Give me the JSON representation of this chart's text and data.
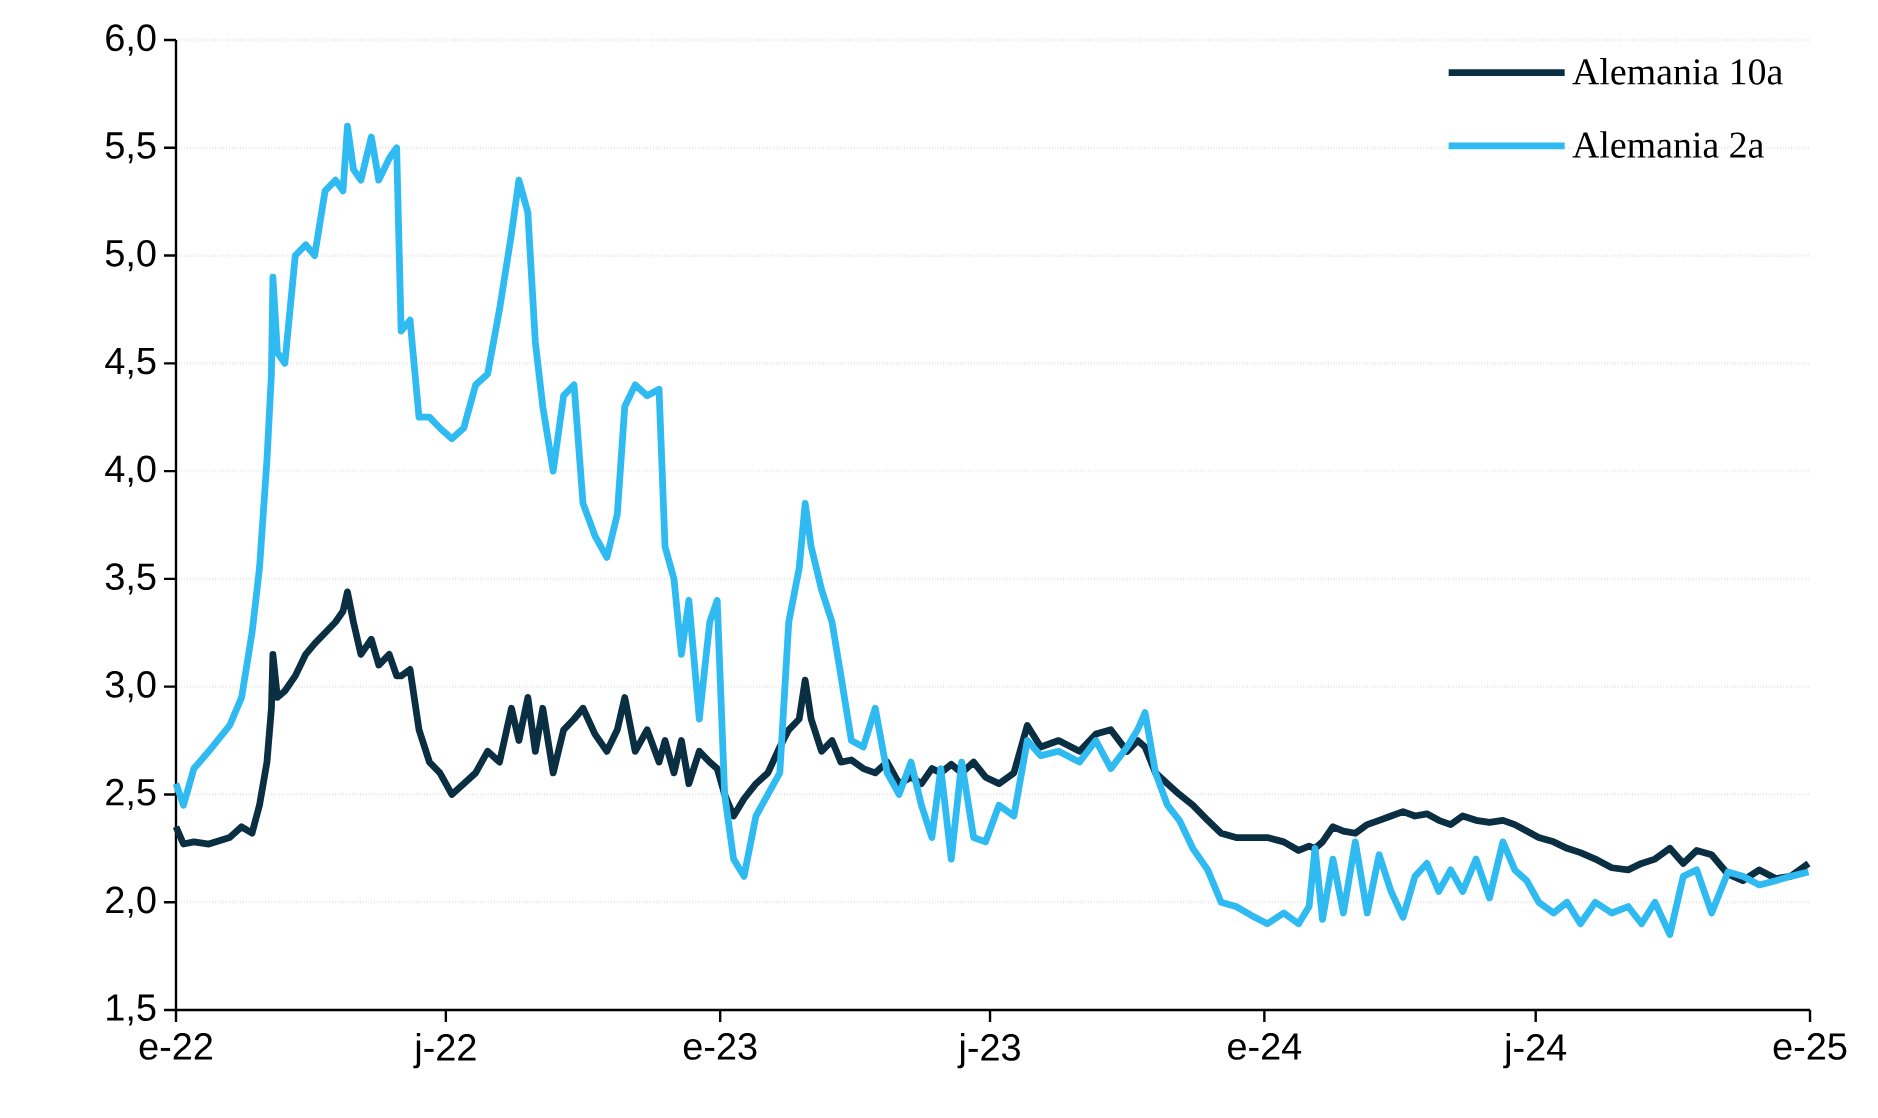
{
  "chart_data": {
    "type": "line",
    "x": [
      "2022-01-01",
      "2022-01-06",
      "2022-01-13",
      "2022-01-23",
      "2022-02-06",
      "2022-02-14",
      "2022-02-21",
      "2022-02-26",
      "2022-03-03",
      "2022-03-06",
      "2022-03-07",
      "2022-03-10",
      "2022-03-15",
      "2022-03-22",
      "2022-03-29",
      "2022-04-04",
      "2022-04-11",
      "2022-04-18",
      "2022-04-23",
      "2022-04-26",
      "2022-04-30",
      "2022-05-05",
      "2022-05-12",
      "2022-05-17",
      "2022-05-24",
      "2022-05-29",
      "2022-06-01",
      "2022-06-07",
      "2022-06-13",
      "2022-06-20",
      "2022-06-27",
      "2022-07-05",
      "2022-07-13",
      "2022-07-21",
      "2022-07-29",
      "2022-08-06",
      "2022-08-14",
      "2022-08-19",
      "2022-08-25",
      "2022-08-30",
      "2022-09-04",
      "2022-09-11",
      "2022-09-18",
      "2022-09-25",
      "2022-10-01",
      "2022-10-09",
      "2022-10-17",
      "2022-10-24",
      "2022-10-29",
      "2022-11-05",
      "2022-11-13",
      "2022-11-21",
      "2022-11-25",
      "2022-12-01",
      "2022-12-06",
      "2022-12-11",
      "2022-12-18",
      "2022-12-25",
      "2022-12-30",
      "2023-01-04",
      "2023-01-10",
      "2023-01-17",
      "2023-01-25",
      "2023-02-02",
      "2023-02-10",
      "2023-02-16",
      "2023-02-23",
      "2023-02-27",
      "2023-03-03",
      "2023-03-10",
      "2023-03-17",
      "2023-03-23",
      "2023-03-30",
      "2023-04-07",
      "2023-04-15",
      "2023-04-23",
      "2023-05-01",
      "2023-05-09",
      "2023-05-16",
      "2023-05-23",
      "2023-05-29",
      "2023-06-05",
      "2023-06-12",
      "2023-06-20",
      "2023-06-28",
      "2023-07-07",
      "2023-07-17",
      "2023-07-26",
      "2023-08-04",
      "2023-08-16",
      "2023-08-30",
      "2023-09-10",
      "2023-09-20",
      "2023-10-01",
      "2023-10-08",
      "2023-10-13",
      "2023-10-20",
      "2023-10-28",
      "2023-11-05",
      "2023-11-14",
      "2023-11-24",
      "2023-12-03",
      "2023-12-13",
      "2023-12-23",
      "2024-01-03",
      "2024-01-14",
      "2024-01-24",
      "2024-01-31",
      "2024-02-04",
      "2024-02-09",
      "2024-02-16",
      "2024-02-23",
      "2024-03-02",
      "2024-03-10",
      "2024-03-18",
      "2024-03-26",
      "2024-04-03",
      "2024-04-11",
      "2024-04-19",
      "2024-04-27",
      "2024-05-05",
      "2024-05-13",
      "2024-05-22",
      "2024-05-31",
      "2024-06-09",
      "2024-06-17",
      "2024-06-25",
      "2024-07-03",
      "2024-07-13",
      "2024-07-22",
      "2024-07-31",
      "2024-08-10",
      "2024-08-21",
      "2024-09-01",
      "2024-09-10",
      "2024-09-19",
      "2024-09-29",
      "2024-10-08",
      "2024-10-17",
      "2024-10-27",
      "2024-11-07",
      "2024-11-17",
      "2024-11-28",
      "2024-12-09",
      "2024-12-19",
      "2024-12-31"
    ],
    "series": [
      {
        "name": "Alemania 10a",
        "color": "#0a2e42",
        "values": [
          2.35,
          2.27,
          2.28,
          2.27,
          2.3,
          2.35,
          2.32,
          2.45,
          2.65,
          2.9,
          3.15,
          2.95,
          2.98,
          3.05,
          3.15,
          3.2,
          3.25,
          3.3,
          3.35,
          3.44,
          3.3,
          3.15,
          3.22,
          3.1,
          3.15,
          3.05,
          3.05,
          3.08,
          2.8,
          2.65,
          2.6,
          2.5,
          2.55,
          2.6,
          2.7,
          2.65,
          2.9,
          2.75,
          2.95,
          2.7,
          2.9,
          2.6,
          2.8,
          2.85,
          2.9,
          2.78,
          2.7,
          2.8,
          2.95,
          2.7,
          2.8,
          2.65,
          2.75,
          2.6,
          2.75,
          2.55,
          2.7,
          2.65,
          2.62,
          2.5,
          2.4,
          2.48,
          2.55,
          2.6,
          2.72,
          2.8,
          2.85,
          3.03,
          2.85,
          2.7,
          2.75,
          2.65,
          2.66,
          2.62,
          2.6,
          2.65,
          2.55,
          2.58,
          2.55,
          2.62,
          2.6,
          2.64,
          2.6,
          2.65,
          2.58,
          2.55,
          2.6,
          2.82,
          2.72,
          2.75,
          2.7,
          2.78,
          2.8,
          2.7,
          2.75,
          2.72,
          2.6,
          2.55,
          2.5,
          2.45,
          2.38,
          2.32,
          2.3,
          2.3,
          2.3,
          2.28,
          2.24,
          2.26,
          2.25,
          2.28,
          2.35,
          2.33,
          2.32,
          2.36,
          2.38,
          2.4,
          2.42,
          2.4,
          2.41,
          2.38,
          2.36,
          2.4,
          2.38,
          2.37,
          2.38,
          2.36,
          2.33,
          2.3,
          2.28,
          2.25,
          2.23,
          2.2,
          2.16,
          2.15,
          2.18,
          2.2,
          2.25,
          2.18,
          2.24,
          2.22,
          2.13,
          2.1,
          2.15,
          2.11,
          2.12,
          2.18
        ]
      },
      {
        "name": "Alemania 2a",
        "color": "#2fbbf2",
        "values": [
          2.55,
          2.45,
          2.62,
          2.7,
          2.82,
          2.95,
          3.25,
          3.55,
          4.05,
          4.45,
          4.9,
          4.55,
          4.5,
          5.0,
          5.05,
          5.0,
          5.3,
          5.35,
          5.3,
          5.6,
          5.4,
          5.35,
          5.55,
          5.35,
          5.45,
          5.5,
          4.65,
          4.7,
          4.25,
          4.25,
          4.2,
          4.15,
          4.2,
          4.4,
          4.45,
          4.75,
          5.1,
          5.35,
          5.2,
          4.6,
          4.3,
          4.0,
          4.35,
          4.4,
          3.85,
          3.7,
          3.6,
          3.8,
          4.3,
          4.4,
          4.35,
          4.38,
          3.65,
          3.5,
          3.15,
          3.4,
          2.85,
          3.3,
          3.4,
          2.5,
          2.2,
          2.12,
          2.4,
          2.5,
          2.6,
          3.3,
          3.55,
          3.85,
          3.65,
          3.45,
          3.3,
          3.05,
          2.75,
          2.72,
          2.9,
          2.6,
          2.5,
          2.65,
          2.45,
          2.3,
          2.62,
          2.2,
          2.65,
          2.3,
          2.28,
          2.45,
          2.4,
          2.75,
          2.68,
          2.7,
          2.65,
          2.75,
          2.62,
          2.72,
          2.8,
          2.88,
          2.6,
          2.45,
          2.38,
          2.25,
          2.15,
          2.0,
          1.98,
          1.94,
          1.9,
          1.95,
          1.9,
          1.98,
          2.25,
          1.92,
          2.2,
          1.95,
          2.28,
          1.95,
          2.22,
          2.05,
          1.93,
          2.12,
          2.18,
          2.05,
          2.15,
          2.05,
          2.2,
          2.02,
          2.28,
          2.15,
          2.1,
          2.0,
          1.95,
          2.0,
          1.9,
          2.0,
          1.95,
          1.98,
          1.9,
          2.0,
          1.85,
          2.12,
          2.15,
          1.95,
          2.14,
          2.12,
          2.08,
          2.1,
          2.12,
          2.14
        ]
      }
    ],
    "xlim": [
      "2022-01-01",
      "2025-01-01"
    ],
    "xticks": [
      {
        "value": "2022-01-01",
        "label": "e-22"
      },
      {
        "value": "2022-07-01",
        "label": "j-22"
      },
      {
        "value": "2023-01-01",
        "label": "e-23"
      },
      {
        "value": "2023-07-01",
        "label": "j-23"
      },
      {
        "value": "2024-01-01",
        "label": "e-24"
      },
      {
        "value": "2024-07-01",
        "label": "j-24"
      },
      {
        "value": "2025-01-01",
        "label": "e-25"
      }
    ],
    "ylim": [
      1.5,
      6.0
    ],
    "yticks": [
      {
        "value": 1.5,
        "label": "1,5"
      },
      {
        "value": 2.0,
        "label": "2,0"
      },
      {
        "value": 2.5,
        "label": "2,5"
      },
      {
        "value": 3.0,
        "label": "3,0"
      },
      {
        "value": 3.5,
        "label": "3,5"
      },
      {
        "value": 4.0,
        "label": "4,0"
      },
      {
        "value": 4.5,
        "label": "4,5"
      },
      {
        "value": 5.0,
        "label": "5,0"
      },
      {
        "value": 5.5,
        "label": "5,5"
      },
      {
        "value": 6.0,
        "label": "6,0"
      }
    ],
    "grid": "y",
    "legend": "top right"
  }
}
